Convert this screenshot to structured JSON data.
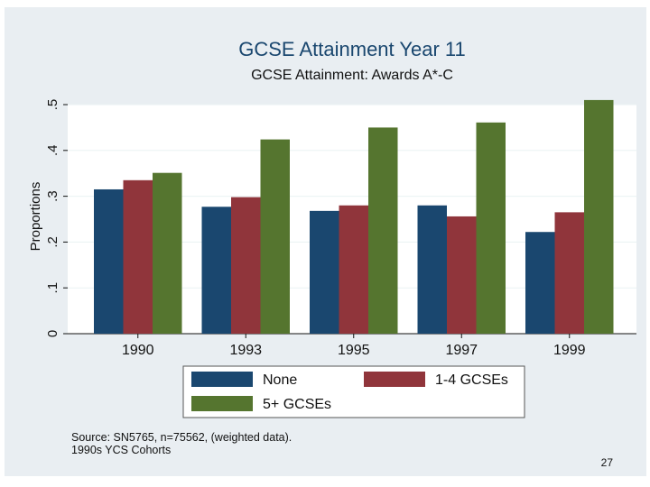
{
  "chart_data": {
    "type": "bar",
    "title": "GCSE Attainment Year 11",
    "subtitle": "GCSE Attainment: Awards A*-C",
    "xlabel": "",
    "ylabel": "Proportions",
    "ylim": [
      0,
      0.5
    ],
    "yticks": [
      {
        "value": 0,
        "label": "0"
      },
      {
        "value": 0.1,
        "label": ".1"
      },
      {
        "value": 0.2,
        "label": ".2"
      },
      {
        "value": 0.3,
        "label": ".3"
      },
      {
        "value": 0.4,
        "label": ".4"
      },
      {
        "value": 0.5,
        "label": ".5"
      }
    ],
    "grid": true,
    "legend_position": "bottom",
    "categories": [
      "1990",
      "1993",
      "1995",
      "1997",
      "1999"
    ],
    "series": [
      {
        "name": "None",
        "color": "#1a476f",
        "values": [
          0.315,
          0.277,
          0.268,
          0.28,
          0.222
        ]
      },
      {
        "name": "1-4 GCSEs",
        "color": "#90353b",
        "values": [
          0.335,
          0.298,
          0.28,
          0.256,
          0.265
        ]
      },
      {
        "name": "5+ GCSEs",
        "color": "#55752f",
        "values": [
          0.351,
          0.424,
          0.45,
          0.461,
          0.51
        ]
      }
    ]
  },
  "footer": {
    "source_line1": "Source: SN5765, n=75562, (weighted data).",
    "source_line2": "1990s YCS Cohorts",
    "page_number": "27"
  }
}
